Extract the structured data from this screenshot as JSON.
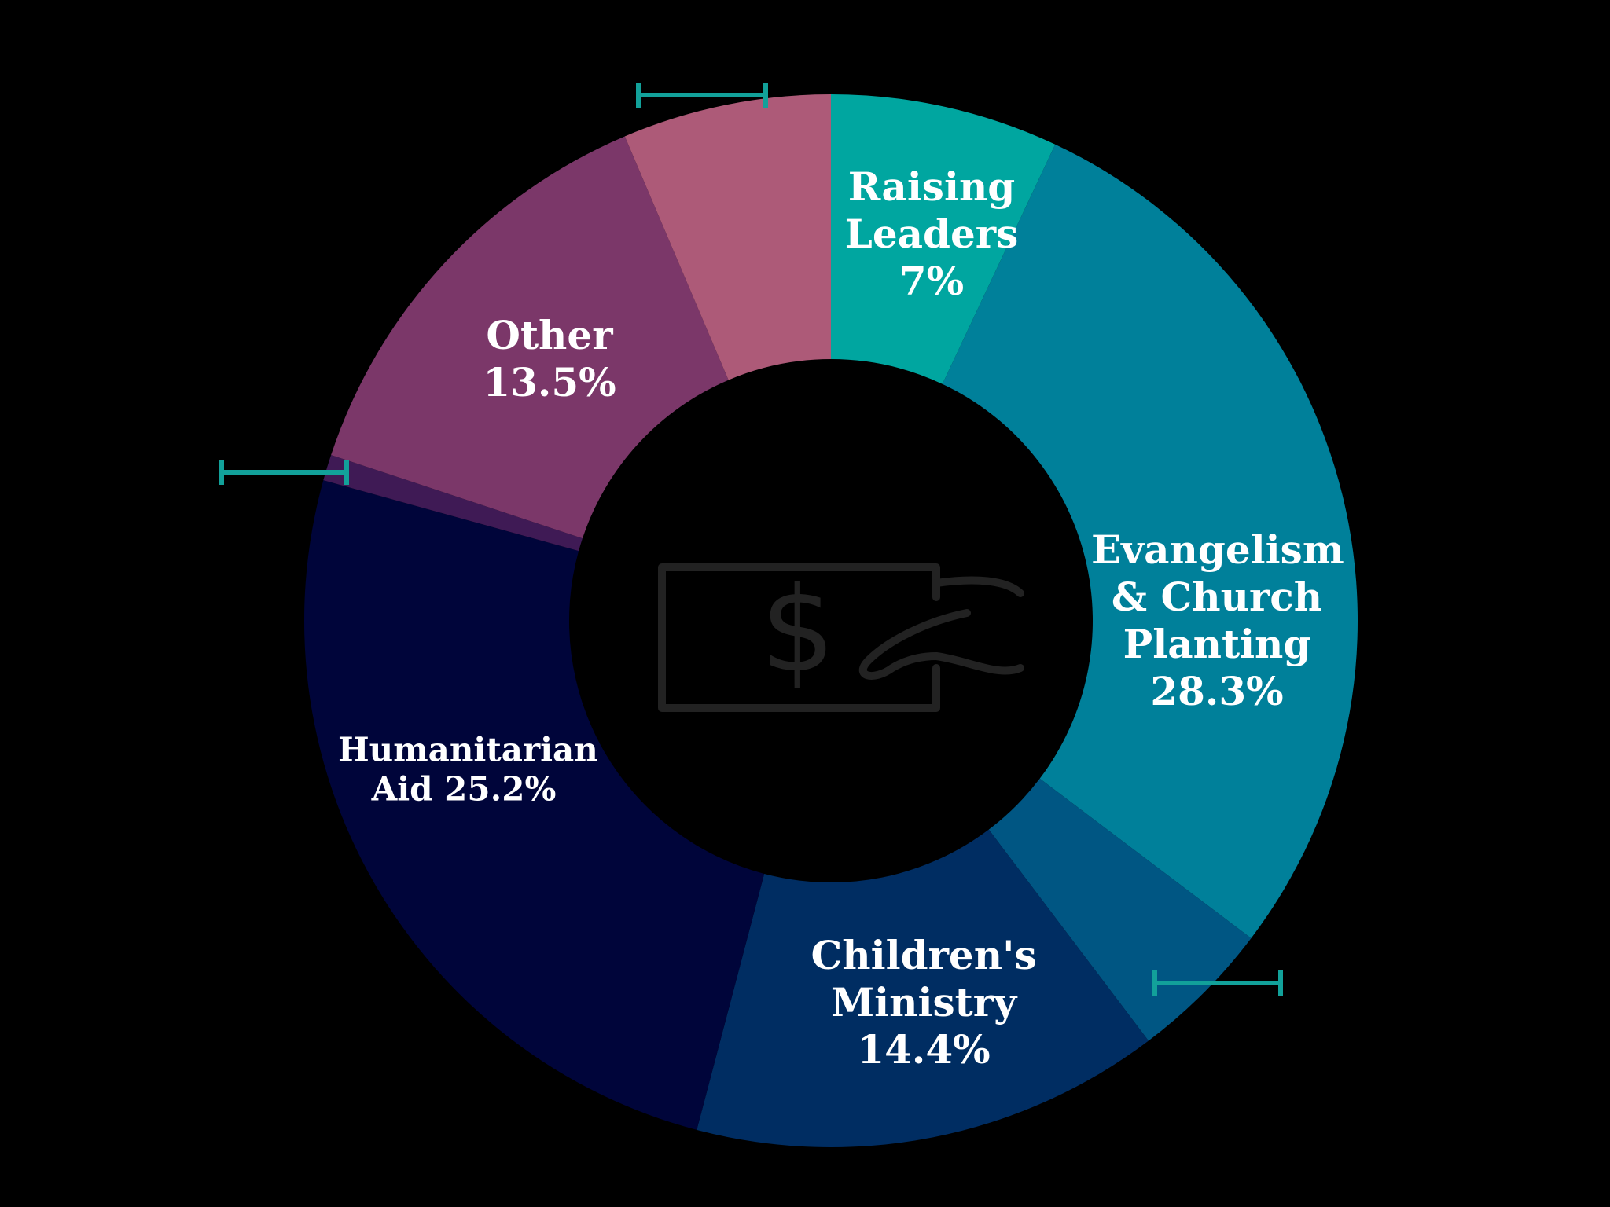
{
  "chart_data": {
    "type": "donut",
    "categories": [
      "Raising Leaders",
      "Evangelism & Church Planting",
      null,
      "Children's Ministry",
      "Humanitarian Aid",
      null,
      "Other",
      null
    ],
    "values": [
      7,
      28.3,
      4.4,
      14.4,
      25.2,
      0.8,
      13.5,
      6.4
    ],
    "value_labels": [
      "7%",
      "28.3%",
      null,
      "14.4%",
      "25.2%",
      null,
      "13.5%",
      null
    ],
    "colors": [
      "#00a6a0",
      "#00809a",
      "#005683",
      "#002d62",
      "#00053a",
      "#3f1a55",
      "#7b3769",
      "#ad5a78"
    ]
  }
}
